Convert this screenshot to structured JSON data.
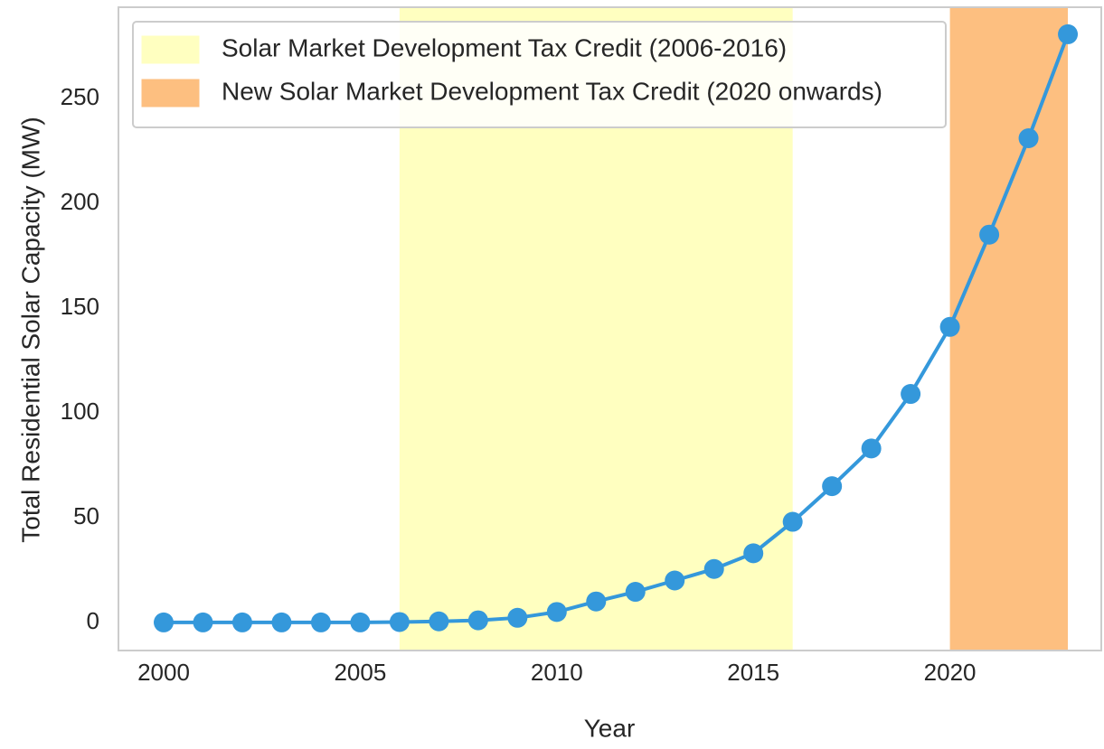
{
  "chart_data": {
    "type": "line",
    "x_label": "Year",
    "y_label": "Total Residential Solar Capacity (MW)",
    "x": [
      2000,
      2001,
      2002,
      2003,
      2004,
      2005,
      2006,
      2007,
      2008,
      2009,
      2010,
      2011,
      2012,
      2013,
      2014,
      2015,
      2016,
      2017,
      2018,
      2019,
      2020,
      2021,
      2022,
      2023
    ],
    "series": [
      {
        "color": "#3498db",
        "values": [
          0,
          0,
          0,
          0,
          0,
          0,
          0.2,
          0.5,
          1,
          2.2,
          5,
          10,
          14.6,
          20,
          25.5,
          33,
          48,
          65,
          83,
          109,
          141,
          185,
          231,
          280.6
        ]
      }
    ],
    "spans": [
      {
        "name": "Solar Market Development Tax Credit (2006-2016)",
        "start": 2006,
        "end": 2016,
        "color": "#ffffc0"
      },
      {
        "name": "New Solar Market Development Tax Credit (2020 onwards)",
        "start": 2020,
        "end": 2023,
        "color": "#fdbf80"
      }
    ],
    "xlim": [
      1998.85,
      2023.85
    ],
    "ylim": [
      -13.4,
      293.5
    ],
    "xticks": [
      2000,
      2005,
      2010,
      2015,
      2020
    ],
    "yticks": [
      0,
      50,
      100,
      150,
      200,
      250
    ],
    "grid": false,
    "legend": "upper left"
  }
}
